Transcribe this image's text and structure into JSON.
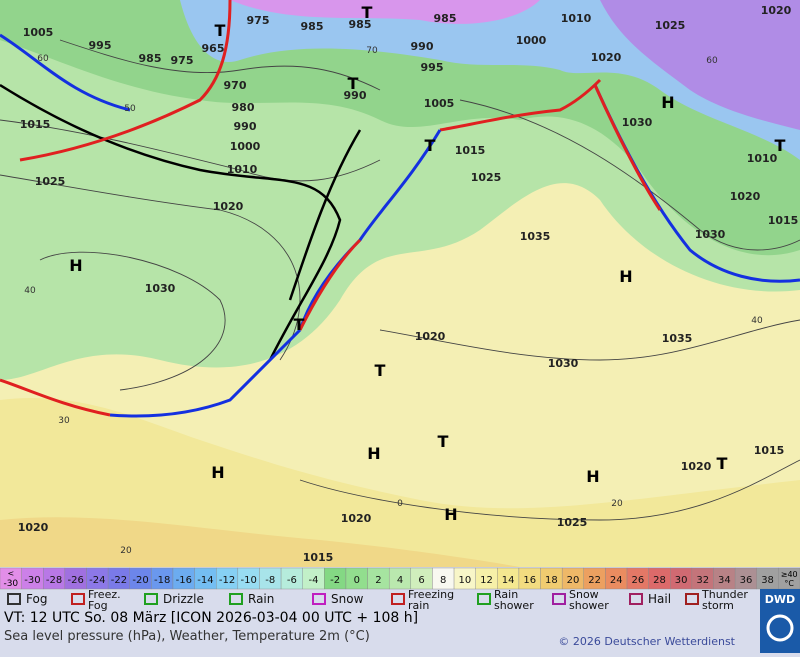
{
  "map": {
    "pressure_labels": [
      "1005",
      "995",
      "985",
      "975",
      "965",
      "975",
      "985",
      "985",
      "985",
      "1010",
      "1025",
      "1020",
      "1000",
      "990",
      "995",
      "970",
      "980",
      "990",
      "1000",
      "1010",
      "990",
      "1005",
      "1015",
      "1025",
      "1020",
      "1030",
      "1015",
      "1025",
      "1035",
      "1020",
      "1030",
      "1010",
      "1020",
      "1015",
      "1030",
      "1035",
      "1020",
      "1030",
      "1020",
      "1015",
      "1025",
      "1020",
      "1020",
      "1015"
    ],
    "isotherm_labels": [
      "60",
      "50",
      "70",
      "60",
      "40",
      "40",
      "30",
      "20",
      "20",
      "0"
    ],
    "centers": [
      "T",
      "T",
      "T",
      "T",
      "H",
      "H",
      "H",
      "T",
      "H",
      "T",
      "H",
      "H",
      "H",
      "T",
      "T",
      "T"
    ]
  },
  "legend": {
    "temperature_scale": {
      "first": {
        "top": "<",
        "bottom": "-30"
      },
      "values": [
        -30,
        -28,
        -26,
        -24,
        -22,
        -20,
        -18,
        -16,
        -14,
        -12,
        -10,
        -8,
        -6,
        -4,
        -2,
        0,
        2,
        4,
        6,
        8,
        10,
        12,
        14,
        16,
        18,
        20,
        22,
        24,
        26,
        28,
        30,
        32,
        34,
        36,
        38
      ],
      "colors": [
        "#e28ee8",
        "#cc80e8",
        "#b878e6",
        "#a070e0",
        "#8c78e8",
        "#7a7ae8",
        "#6c86ea",
        "#6a98ee",
        "#6cacf0",
        "#74bef2",
        "#86d0f4",
        "#98dcf2",
        "#a8e4ea",
        "#b6ecdc",
        "#c2f0c8",
        "#84d884",
        "#92de8e",
        "#a6e4a0",
        "#bae8ae",
        "#d0eebc",
        "#f8f8f0",
        "#f8f6c8",
        "#f6f0a8",
        "#f4e890",
        "#f2dc80",
        "#f0cc70",
        "#eeb868",
        "#eca060",
        "#ea8c60",
        "#e47866",
        "#dc6a6a",
        "#d06a72",
        "#c4747a",
        "#b88286",
        "#ac9094",
        "#a0a0a0"
      ],
      "last": {
        "top": "≥40",
        "bottom": "°C"
      }
    },
    "symbols": [
      "Fog",
      "Freez. Fog",
      "Drizzle",
      "Rain",
      "Snow",
      "Freezing rain",
      "Rain shower",
      "Snow shower",
      "Hail",
      "Thunder storm"
    ]
  },
  "footer": {
    "valid_time": "VT: 12 UTC So.  08 März [ICON 2026-03-04  00 UTC + 108 h]",
    "description": "Sea level pressure (hPa), Weather, Temperature 2m (°C)",
    "copyright": "© 2026 Deutscher Wetterdienst",
    "logo": "DWD"
  }
}
